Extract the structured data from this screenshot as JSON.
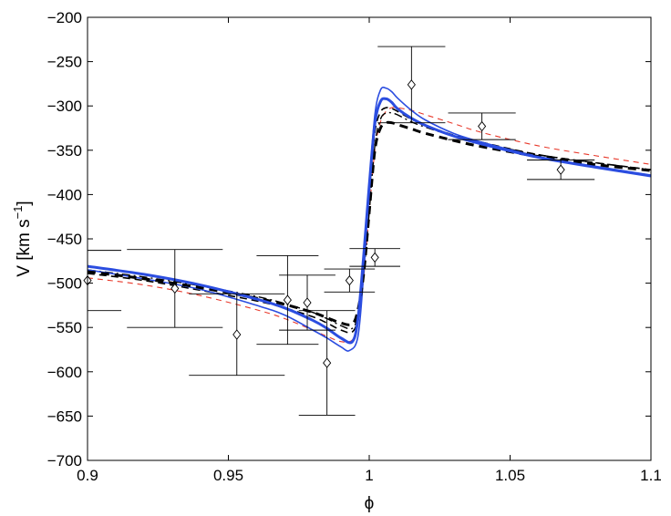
{
  "chart_data": {
    "type": "line",
    "xlabel": "ϕ",
    "ylabel_main": "V [km s",
    "ylabel_sup": "−1",
    "ylabel_close": "]",
    "xlim": [
      0.9,
      1.1
    ],
    "ylim": [
      -700,
      -200
    ],
    "xticks": [
      0.9,
      0.95,
      1.0,
      1.05,
      1.1
    ],
    "xtick_labels": [
      "0.9",
      "0.95",
      "1",
      "1.05",
      "1.1"
    ],
    "yticks": [
      -700,
      -650,
      -600,
      -550,
      -500,
      -450,
      -400,
      -350,
      -300,
      -250,
      -200
    ],
    "ytick_labels": [
      "−700",
      "−650",
      "−600",
      "−550",
      "−500",
      "−450",
      "−400",
      "−350",
      "−300",
      "−250",
      "−200"
    ],
    "grid": false,
    "data_points": [
      {
        "x": 0.9,
        "y": -497,
        "yerr": 34,
        "xerr": 0.012
      },
      {
        "x": 0.931,
        "y": -506,
        "yerr": 44,
        "xerr": 0.017
      },
      {
        "x": 0.953,
        "y": -558,
        "yerr": 46,
        "xerr": 0.017
      },
      {
        "x": 0.971,
        "y": -519,
        "yerr": 50,
        "xerr": 0.011
      },
      {
        "x": 0.978,
        "y": -522,
        "yerr": 31,
        "xerr": 0.01
      },
      {
        "x": 0.985,
        "y": -590,
        "yerr": 59,
        "xerr": 0.01
      },
      {
        "x": 0.993,
        "y": -497,
        "yerr": 13,
        "xerr": 0.009
      },
      {
        "x": 1.002,
        "y": -471,
        "yerr": 10,
        "xerr": 0.009
      },
      {
        "x": 1.015,
        "y": -276,
        "yerr": 43,
        "xerr": 0.012
      },
      {
        "x": 1.04,
        "y": -323,
        "yerr": 15,
        "xerr": 0.012
      },
      {
        "x": 1.068,
        "y": -372,
        "yerr": 11,
        "xerr": 0.012
      }
    ],
    "series": [
      {
        "style": "blue-thick",
        "color": "#2b4de0",
        "x": [
          0.9,
          0.92,
          0.94,
          0.96,
          0.97,
          0.98,
          0.985,
          0.99,
          0.994,
          0.996,
          0.998,
          1.0,
          1.002,
          1.004,
          1.006,
          1.008,
          1.01,
          1.015,
          1.02,
          1.03,
          1.04,
          1.06,
          1.08,
          1.1
        ],
        "y": [
          -481,
          -490,
          -502,
          -518,
          -528,
          -542,
          -551,
          -562,
          -566,
          -540,
          -470,
          -390,
          -320,
          -295,
          -292,
          -296,
          -303,
          -314,
          -322,
          -334,
          -343,
          -358,
          -369,
          -379
        ]
      },
      {
        "style": "blue-thin",
        "color": "#2b4de0",
        "x": [
          0.9,
          0.92,
          0.94,
          0.96,
          0.97,
          0.98,
          0.985,
          0.99,
          0.993,
          0.996,
          0.998,
          1.0,
          1.002,
          1.004,
          1.006,
          1.008,
          1.01,
          1.015,
          1.02,
          1.03,
          1.04,
          1.06,
          1.08,
          1.1
        ],
        "y": [
          -485,
          -495,
          -507,
          -525,
          -536,
          -553,
          -562,
          -572,
          -576,
          -560,
          -490,
          -390,
          -310,
          -282,
          -280,
          -284,
          -291,
          -305,
          -316,
          -331,
          -341,
          -357,
          -368,
          -378
        ]
      },
      {
        "style": "black-dashed-thick",
        "color": "#000000",
        "x": [
          0.9,
          0.92,
          0.94,
          0.96,
          0.97,
          0.98,
          0.985,
          0.99,
          0.994,
          0.996,
          0.998,
          1.0,
          1.002,
          1.004,
          1.006,
          1.008,
          1.01,
          1.015,
          1.02,
          1.03,
          1.04,
          1.06,
          1.08,
          1.1
        ],
        "y": [
          -487,
          -495,
          -505,
          -517,
          -524,
          -533,
          -539,
          -545,
          -546,
          -530,
          -490,
          -420,
          -350,
          -325,
          -319,
          -319,
          -321,
          -326,
          -331,
          -339,
          -346,
          -357,
          -366,
          -373
        ]
      },
      {
        "style": "black-dashed-thin",
        "color": "#000000",
        "x": [
          0.9,
          0.92,
          0.94,
          0.96,
          0.97,
          0.98,
          0.985,
          0.99,
          0.994,
          0.996,
          0.998,
          1.0,
          1.002,
          1.004,
          1.006,
          1.008,
          1.01,
          1.015,
          1.02,
          1.03,
          1.04,
          1.06,
          1.08,
          1.1
        ],
        "y": [
          -489,
          -497,
          -508,
          -520,
          -528,
          -538,
          -545,
          -553,
          -555,
          -538,
          -485,
          -400,
          -330,
          -307,
          -302,
          -303,
          -306,
          -315,
          -322,
          -333,
          -341,
          -355,
          -364,
          -372
        ]
      },
      {
        "style": "black-dashdot",
        "color": "#000000",
        "x": [
          0.9,
          0.92,
          0.94,
          0.96,
          0.97,
          0.98,
          0.985,
          0.99,
          0.994,
          0.996,
          0.998,
          1.0,
          1.002,
          1.004,
          1.006,
          1.008,
          1.01,
          1.015,
          1.02,
          1.03,
          1.04,
          1.06,
          1.08,
          1.1
        ],
        "y": [
          -485,
          -493,
          -503,
          -515,
          -523,
          -533,
          -540,
          -548,
          -551,
          -535,
          -490,
          -420,
          -345,
          -315,
          -308,
          -308,
          -310,
          -318,
          -324,
          -334,
          -342,
          -355,
          -364,
          -372
        ]
      },
      {
        "style": "red-dashed",
        "color": "#e8382a",
        "x": [
          0.9,
          0.92,
          0.94,
          0.96,
          0.97,
          0.98,
          0.985,
          0.99,
          0.994,
          0.996,
          0.998,
          1.0,
          1.002,
          1.004,
          1.006,
          1.008,
          1.01,
          1.015,
          1.02,
          1.03,
          1.04,
          1.06,
          1.08,
          1.1
        ],
        "y": [
          -494,
          -502,
          -514,
          -530,
          -540,
          -553,
          -560,
          -566,
          -564,
          -545,
          -495,
          -420,
          -350,
          -318,
          -306,
          -302,
          -302,
          -305,
          -310,
          -320,
          -330,
          -345,
          -356,
          -366
        ]
      }
    ]
  }
}
